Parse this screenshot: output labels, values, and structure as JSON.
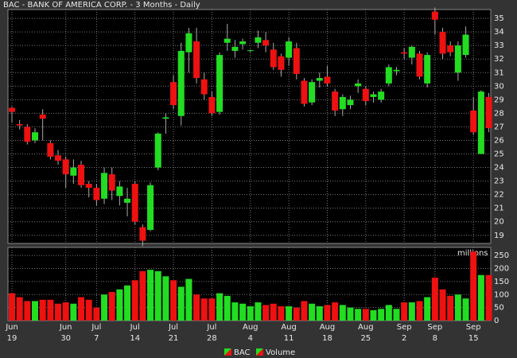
{
  "chart_data": {
    "type": "candlestick",
    "title": "BAC - BANK OF AMERICA CORP. - 3 Months - Daily",
    "categories": [
      [
        "Jun",
        "19"
      ],
      null,
      null,
      null,
      null,
      null,
      null,
      [
        "Jun",
        "30"
      ],
      null,
      null,
      null,
      [
        "Jul",
        "7"
      ],
      null,
      null,
      null,
      null,
      [
        "Jul",
        "14"
      ],
      null,
      null,
      null,
      null,
      [
        "Jul",
        "21"
      ],
      null,
      null,
      null,
      null,
      [
        "Jul",
        "28"
      ],
      null,
      null,
      null,
      null,
      [
        "Aug",
        "4"
      ],
      null,
      null,
      null,
      null,
      [
        "Aug",
        "11"
      ],
      null,
      null,
      null,
      null,
      [
        "Aug",
        "18"
      ],
      null,
      null,
      null,
      null,
      [
        "Aug",
        "25"
      ],
      null,
      null,
      null,
      null,
      [
        "Sep",
        "2"
      ],
      null,
      null,
      null,
      [
        "Sep",
        "8"
      ],
      null,
      null,
      null,
      null,
      [
        "Sep",
        "15"
      ],
      null,
      null
    ],
    "series": [
      {
        "name": "BAC",
        "color": "#22dd22",
        "down_color": "#ee1111",
        "open": [
          28.4,
          27.2,
          27.0,
          26.0,
          27.9,
          25.8,
          24.9,
          24.6,
          23.4,
          24.2,
          22.8,
          22.5,
          21.7,
          23.5,
          21.9,
          21.4,
          22.8,
          19.6,
          19.4,
          24.0,
          27.6,
          30.3,
          27.8,
          32.5,
          33.3,
          30.5,
          29.2,
          28.1,
          33.2,
          32.6,
          33.1,
          32.6,
          33.2,
          33.4,
          32.7,
          32.2,
          32.1,
          32.8,
          30.4,
          28.8,
          30.4,
          30.7,
          29.6,
          28.3,
          28.6,
          30.0,
          29.8,
          29.2,
          29.0,
          30.2,
          31.1,
          32.5,
          32.1,
          32.4,
          30.2,
          35.5,
          34.0,
          33.0,
          31.0,
          32.3,
          28.2,
          25.0,
          29.2
        ],
        "high": [
          28.5,
          27.5,
          27.2,
          26.9,
          28.3,
          26.0,
          25.3,
          24.8,
          24.6,
          24.5,
          23.0,
          22.8,
          24.0,
          24.0,
          23.0,
          22.5,
          23.0,
          19.8,
          22.9,
          26.6,
          28.0,
          30.8,
          33.2,
          34.3,
          34.3,
          31.0,
          29.6,
          32.5,
          34.6,
          33.4,
          33.5,
          32.7,
          34.1,
          34.0,
          33.2,
          32.4,
          33.6,
          33.2,
          30.6,
          30.5,
          31.0,
          31.5,
          29.8,
          29.4,
          29.3,
          30.5,
          30.0,
          29.6,
          29.8,
          31.6,
          31.4,
          32.8,
          33.0,
          32.6,
          32.5,
          35.8,
          34.3,
          33.3,
          33.3,
          34.4,
          29.2,
          29.7,
          29.5
        ],
        "low": [
          27.3,
          26.8,
          25.7,
          25.8,
          26.0,
          24.6,
          24.2,
          22.5,
          22.8,
          22.5,
          21.8,
          21.2,
          21.3,
          21.6,
          21.2,
          20.4,
          19.8,
          18.2,
          19.3,
          23.8,
          26.5,
          28.3,
          27.1,
          31.0,
          30.2,
          29.0,
          27.8,
          27.9,
          32.6,
          32.1,
          32.7,
          32.5,
          32.8,
          32.5,
          31.2,
          30.7,
          31.5,
          30.5,
          28.5,
          28.6,
          29.9,
          30.0,
          27.8,
          27.8,
          28.3,
          29.5,
          28.6,
          28.8,
          28.8,
          30.0,
          30.8,
          32.0,
          31.6,
          30.5,
          29.9,
          33.8,
          32.0,
          32.2,
          30.4,
          32.1,
          26.4,
          25.0,
          26.6
        ],
        "close": [
          28.1,
          27.1,
          25.9,
          26.6,
          27.6,
          24.8,
          24.5,
          23.5,
          24.0,
          22.7,
          22.5,
          21.6,
          23.6,
          22.3,
          22.6,
          21.7,
          20.0,
          18.6,
          22.7,
          26.5,
          27.7,
          28.6,
          32.6,
          33.9,
          30.6,
          29.4,
          28.0,
          32.3,
          33.5,
          32.9,
          33.3,
          32.65,
          33.6,
          33.0,
          31.4,
          31.2,
          33.3,
          30.9,
          28.7,
          30.3,
          30.6,
          30.2,
          28.2,
          29.2,
          29.0,
          30.2,
          28.9,
          29.4,
          29.6,
          31.4,
          31.2,
          32.4,
          32.9,
          30.7,
          32.3,
          34.9,
          32.4,
          32.5,
          33.0,
          33.8,
          26.6,
          29.6,
          26.9
        ]
      },
      {
        "name": "Volume",
        "axis": "y2",
        "values": [
          105,
          90,
          75,
          75,
          80,
          80,
          65,
          70,
          65,
          90,
          80,
          50,
          100,
          110,
          120,
          135,
          155,
          190,
          195,
          190,
          170,
          155,
          130,
          160,
          100,
          85,
          85,
          105,
          95,
          70,
          65,
          55,
          70,
          60,
          65,
          55,
          55,
          50,
          75,
          65,
          55,
          60,
          70,
          60,
          50,
          45,
          45,
          40,
          45,
          60,
          45,
          70,
          70,
          75,
          90,
          165,
          120,
          95,
          100,
          85,
          265,
          175,
          175
        ]
      }
    ],
    "ylim": [
      18.4,
      35.65
    ],
    "yticks": [
      19,
      20,
      21,
      22,
      23,
      24,
      25,
      26,
      27,
      28,
      29,
      30,
      31,
      32,
      33,
      34,
      35
    ],
    "y2lim": [
      0,
      281
    ],
    "y2ticks": [
      0,
      50,
      100,
      150,
      200,
      250
    ],
    "y2label": "millions",
    "grid": true
  }
}
